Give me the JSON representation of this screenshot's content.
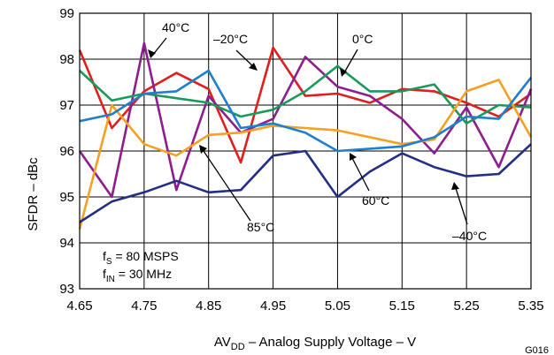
{
  "chart_data": {
    "type": "line",
    "xlabel": {
      "pre": "AV",
      "sub": "DD",
      "post": " – Analog Supply Voltage – V"
    },
    "ylabel": "SFDR – dBc",
    "x_ticks": [
      "4.65",
      "4.75",
      "4.85",
      "4.95",
      "5.05",
      "5.15",
      "5.25",
      "5.35"
    ],
    "y_ticks": [
      "93",
      "94",
      "95",
      "96",
      "97",
      "98",
      "99"
    ],
    "xlim": [
      4.65,
      5.35
    ],
    "ylim": [
      93,
      99
    ],
    "grid": true,
    "x": [
      4.65,
      4.7,
      4.75,
      4.8,
      4.85,
      4.9,
      4.95,
      5.0,
      5.05,
      5.1,
      5.15,
      5.2,
      5.25,
      5.3,
      5.35
    ],
    "series": [
      {
        "name": "40°C",
        "color": "#e01e1e",
        "values": [
          98.2,
          96.5,
          97.3,
          97.7,
          97.35,
          95.75,
          98.25,
          97.2,
          97.25,
          97.05,
          97.35,
          97.3,
          97.05,
          96.75,
          97.25
        ]
      },
      {
        "name": "–20°C",
        "color": "#8e1d8e",
        "values": [
          96.0,
          95.0,
          98.35,
          95.15,
          97.2,
          96.4,
          96.7,
          98.05,
          97.4,
          97.2,
          96.7,
          95.95,
          96.95,
          95.65,
          97.35
        ]
      },
      {
        "name": "0°C",
        "color": "#1a9a5a",
        "values": [
          97.75,
          97.1,
          97.25,
          97.15,
          97.05,
          96.75,
          96.9,
          97.3,
          97.85,
          97.3,
          97.3,
          97.45,
          96.6,
          97.0,
          96.95
        ]
      },
      {
        "name": "85°C",
        "color": "#f5a020",
        "values": [
          94.3,
          97.0,
          96.15,
          95.9,
          96.35,
          96.4,
          96.55,
          96.5,
          96.45,
          96.3,
          96.15,
          96.25,
          97.3,
          97.55,
          96.3
        ]
      },
      {
        "name": "60°C",
        "color": "#1e7fcf",
        "values": [
          96.65,
          96.8,
          97.25,
          97.3,
          97.75,
          96.5,
          96.6,
          96.4,
          96.0,
          96.05,
          96.1,
          96.3,
          96.75,
          96.7,
          97.6
        ]
      },
      {
        "name": "–40°C",
        "color": "#232e85",
        "values": [
          94.45,
          94.9,
          95.1,
          95.35,
          95.1,
          95.15,
          95.9,
          96.0,
          95.0,
          95.55,
          95.95,
          95.65,
          95.45,
          95.5,
          96.15
        ]
      }
    ],
    "annotations": [
      "40°C",
      "–20°C",
      "0°C",
      "85°C",
      "60°C",
      "–40°C"
    ],
    "conditions": [
      {
        "pre": "f",
        "sub": "S",
        "post": " = 80 MSPS"
      },
      {
        "pre": "f",
        "sub": "IN",
        "post": " = 30 MHz"
      }
    ],
    "figure_id": "G016"
  }
}
